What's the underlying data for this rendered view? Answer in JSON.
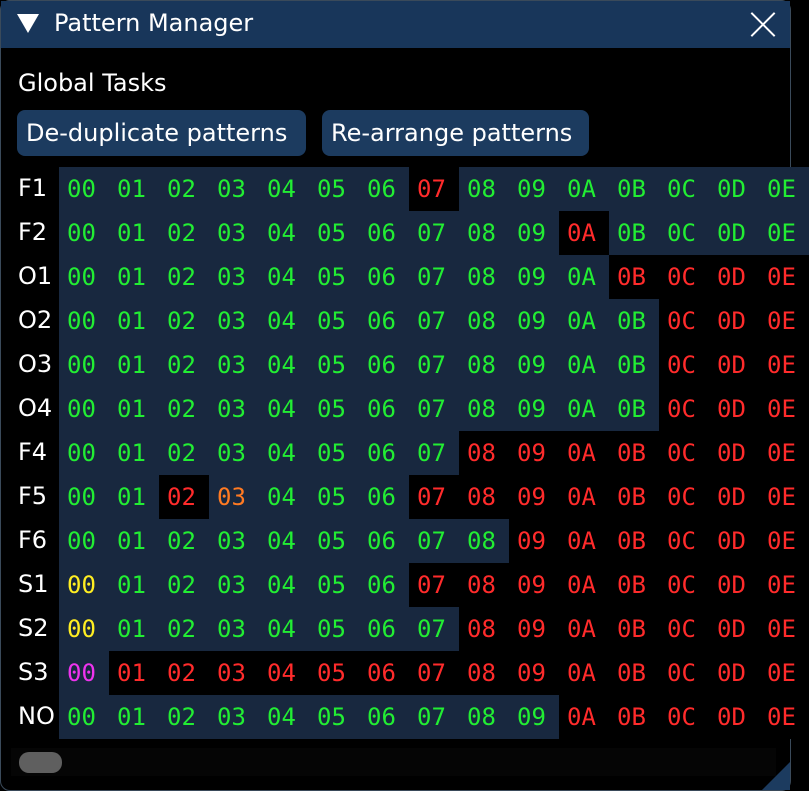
{
  "window": {
    "title": "Pattern Manager",
    "collapse_icon": "triangle-down-icon",
    "close_icon": "close-icon"
  },
  "section": {
    "label": "Global Tasks"
  },
  "buttons": {
    "dedup": "De-duplicate patterns",
    "rearrange": "Re-arrange patterns"
  },
  "colors": {
    "g": "#22ee33",
    "r": "#ff2b2b",
    "o": "#ff7a22",
    "y": "#ffee22",
    "m": "#ee33ee",
    "highlight_bg": "#18283f",
    "title_bg": "#18365a"
  },
  "columns": [
    "00",
    "01",
    "02",
    "03",
    "04",
    "05",
    "06",
    "07",
    "08",
    "09",
    "0A",
    "0B",
    "0C",
    "0D",
    "0E"
  ],
  "rows": [
    {
      "label": "F1",
      "states": "gggggggrggggggg"
    },
    {
      "label": "F2",
      "states": "ggggggggggrgggg"
    },
    {
      "label": "O1",
      "states": "gggggggggggrrrr"
    },
    {
      "label": "O2",
      "states": "ggggggggggggrrr"
    },
    {
      "label": "O3",
      "states": "ggggggggggggrrr"
    },
    {
      "label": "O4",
      "states": "ggggggggggggrrr"
    },
    {
      "label": "F4",
      "states": "ggggggggrrrrrrr"
    },
    {
      "label": "F5",
      "states": "ggroggg rrrrrrrr"
    },
    {
      "label": "F6",
      "states": "gggggggggrrrrrr"
    },
    {
      "label": "S1",
      "states": "ygggggg rrrrrrrr"
    },
    {
      "label": "S2",
      "states": "ygggggggrrrrrrr"
    },
    {
      "label": "S3",
      "states": "mrrrrrrrrrrrrrr"
    },
    {
      "label": "NO",
      "states": "ggggggggggrrrrr"
    }
  ]
}
